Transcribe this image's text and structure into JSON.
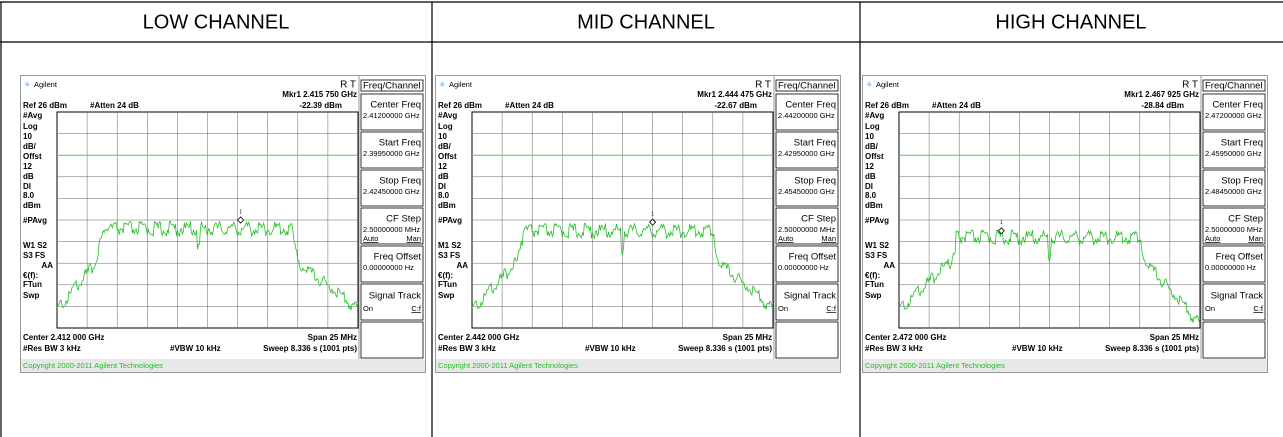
{
  "header": [
    "LOW CHANNEL",
    "MID CHANNEL",
    "HIGH CHANNEL"
  ],
  "panels": [
    {
      "brand": "Agilent",
      "status": "R  T",
      "marker": "Mkr1  2.415 750 GHz",
      "ref": "Ref 26 dBm",
      "atten": "#Atten 24 dB",
      "marker_level": "-22.39 dBm",
      "marker_number": "1",
      "left_labels": [
        "#Avg",
        "Log",
        "10",
        "dB/",
        "Offst",
        "12",
        "dB",
        "Dl",
        "8.0",
        "dBm",
        "#PAvg",
        "W1  S2",
        "S3  FS",
        "AA",
        "€(f):",
        "FTun",
        "Swp"
      ],
      "center": "Center 2.412 000 GHz",
      "span": "Span 25 MHz",
      "rbw": "#Res BW 3 kHz",
      "vbw": "#VBW 10 kHz",
      "sweep": "Sweep 8.336 s (1001 pts)",
      "copyright": "Copyright 2000-2011 Agilent Technologies",
      "softkeys": {
        "title": "Freq/Channel",
        "keys": [
          {
            "label": "Center Freq",
            "value": "2.41200000 GHz"
          },
          {
            "label": "Start Freq",
            "value": "2.39950000 GHz"
          },
          {
            "label": "Stop Freq",
            "value": "2.42450000 GHz"
          },
          {
            "label": "CF Step",
            "value": "2.50000000 MHz",
            "options": [
              "Auto",
              "Man"
            ]
          },
          {
            "label": "Freq Offset",
            "value": "0.00000000 Hz"
          },
          {
            "label": "Signal Track",
            "options": [
              "On",
              "C:f"
            ]
          }
        ]
      }
    },
    {
      "brand": "Agilent",
      "status": "R  T",
      "marker": "Mkr1  2.444 475 GHz",
      "ref": "Ref 26 dBm",
      "atten": "#Atten 24 dB",
      "marker_level": "-22.67 dBm",
      "marker_number": "1",
      "left_labels": [
        "#Avg",
        "Log",
        "10",
        "dB/",
        "Offst",
        "12",
        "dB",
        "Dl",
        "8.0",
        "dBm",
        "#PAvg",
        "M1  S2",
        "S3  FS",
        "AA",
        "€(f):",
        "FTun",
        "Swp"
      ],
      "center": "Center 2.442 000 GHz",
      "span": "Span 25 MHz",
      "rbw": "#Res BW 3 kHz",
      "vbw": "#VBW 10 kHz",
      "sweep": "Sweep 8.336 s (1001 pts)",
      "copyright": "Copyright 2000-2011 Agilent Technologies",
      "softkeys": {
        "title": "Freq/Channel",
        "keys": [
          {
            "label": "Center Freq",
            "value": "2.44200000 GHz"
          },
          {
            "label": "Start Freq",
            "value": "2.42950000 GHz"
          },
          {
            "label": "Stop Freq",
            "value": "2.45450000 GHz"
          },
          {
            "label": "CF Step",
            "value": "2.50000000 MHz",
            "options": [
              "Auto",
              "Man"
            ]
          },
          {
            "label": "Freq Offset",
            "value": "0.00000000 Hz"
          },
          {
            "label": "Signal Track",
            "options": [
              "On",
              "C:f"
            ]
          }
        ]
      }
    },
    {
      "brand": "Agilent",
      "status": "R  T",
      "marker": "Mkr1  2.467 925 GHz",
      "ref": "Ref 26 dBm",
      "atten": "#Atten 24 dB",
      "marker_level": "-28.84 dBm",
      "marker_number": "1",
      "left_labels": [
        "#Avg",
        "Log",
        "10",
        "dB/",
        "Offst",
        "12",
        "dB",
        "Dl",
        "8.0",
        "dBm",
        "#PAvg",
        "W1  S2",
        "S3  FS",
        "AA",
        "€(f):",
        "FTun",
        "Swp"
      ],
      "center": "Center 2.472 000 GHz",
      "span": "Span 25 MHz",
      "rbw": "#Res BW 3 kHz",
      "vbw": "#VBW 10 kHz",
      "sweep": "Sweep 8.336 s (1001 pts)",
      "copyright": "Copyright 2000-2011 Agilent Technologies",
      "softkeys": {
        "title": "Freq/Channel",
        "keys": [
          {
            "label": "Center Freq",
            "value": "2.47200000 GHz"
          },
          {
            "label": "Start Freq",
            "value": "2.45950000 GHz"
          },
          {
            "label": "Stop Freq",
            "value": "2.48450000 GHz"
          },
          {
            "label": "CF Step",
            "value": "2.50000000 MHz",
            "options": [
              "Auto",
              "Man"
            ]
          },
          {
            "label": "Freq Offset",
            "value": "0.00000000 Hz"
          },
          {
            "label": "Signal Track",
            "options": [
              "On",
              "C:f"
            ]
          }
        ]
      }
    }
  ]
}
